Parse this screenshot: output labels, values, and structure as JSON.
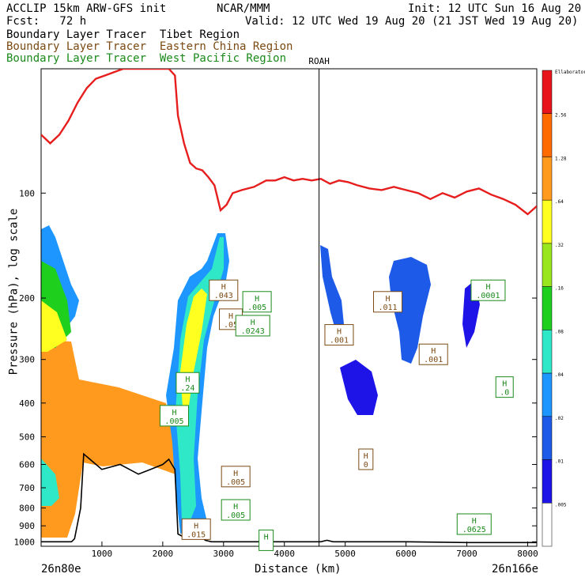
{
  "header": {
    "line1_left": "ACCLIP 15km ARW-GFS init",
    "line1_mid": "NCAR/MMM",
    "line1_right": "Init: 12 UTC Sun 16 Aug 20",
    "line2_left": "Fcst:   72 h",
    "line2_right": "Valid: 12 UTC Wed 19 Aug 20 (21 JST Wed 19 Aug 20)",
    "legend": [
      {
        "label": "Boundary Layer Tracer  Tibet Region",
        "color": "#000000"
      },
      {
        "label": "Boundary Layer Tracer  Eastern China Region",
        "color": "#7b4a12"
      },
      {
        "label": "Boundary Layer Tracer  West Pacific Region",
        "color": "#1a8a1a"
      }
    ]
  },
  "chart_data": {
    "type": "heatmap",
    "title": "ACCLIP 15km ARW-GFS init",
    "xlabel": "Distance (km)",
    "ylabel": "Pressure (hPa), log scale",
    "x_ticks": [
      1000,
      2000,
      3000,
      4000,
      5000,
      6000,
      7000,
      8000
    ],
    "x_range": [
      0,
      8150
    ],
    "y_scale": "log",
    "y_ticks": [
      100,
      200,
      300,
      400,
      500,
      600,
      700,
      800,
      900,
      1000
    ],
    "y_range": [
      1030,
      44
    ],
    "x_end_labels": {
      "left": "26n80e",
      "right": "26n166e"
    },
    "vertical_line": {
      "x": 4570,
      "label": "ROAH"
    },
    "colorbar": {
      "labels": [
        "Ellaborator",
        "2.56",
        "1.28",
        ".64",
        ".32",
        ".16",
        ".08",
        ".04",
        ".02",
        ".01",
        ".005"
      ],
      "colors": [
        "#e8141b",
        "#ff6a00",
        "#ff9a1e",
        "#ffff20",
        "#9ae61e",
        "#1ecf1e",
        "#2ee8c8",
        "#1e96ff",
        "#1e5ae8",
        "#1e14e8",
        "#ffffff"
      ]
    },
    "tropopause_line": {
      "color": "#e61e1e",
      "x": [
        0,
        150,
        300,
        450,
        600,
        750,
        900,
        1050,
        1200,
        1350,
        1500,
        1650,
        1800,
        1950,
        2100,
        2200,
        2250,
        2350,
        2450,
        2550,
        2650,
        2750,
        2850,
        2950,
        3050,
        3150,
        3300,
        3500,
        3700,
        3850,
        4000,
        4150,
        4300,
        4450,
        4600,
        4750,
        4900,
        5050,
        5200,
        5400,
        5600,
        5800,
        6000,
        6200,
        6400,
        6600,
        6800,
        7000,
        7200,
        7400,
        7600,
        7800,
        8000,
        8150
      ],
      "p": [
        68,
        72,
        68,
        62,
        55,
        50,
        47,
        46,
        45,
        44,
        44,
        44,
        44,
        44,
        44,
        46,
        60,
        72,
        82,
        85,
        86,
        90,
        95,
        112,
        108,
        100,
        98,
        96,
        92,
        92,
        90,
        92,
        91,
        92,
        91,
        94,
        92,
        93,
        95,
        97,
        98,
        96,
        98,
        100,
        104,
        100,
        103,
        99,
        97,
        101,
        104,
        108,
        115,
        109
      ]
    },
    "terrain": {
      "x": [
        0,
        200,
        400,
        500,
        550,
        650,
        700,
        1000,
        1300,
        1600,
        1800,
        2000,
        2100,
        2150,
        2200,
        2250,
        2400,
        2500,
        2600,
        2700,
        2800,
        2900,
        3000,
        3100,
        3300,
        3500,
        3800,
        4000,
        4300,
        4500,
        4600,
        4700,
        4800,
        5000,
        5500,
        6000,
        7000,
        8150
      ],
      "p": [
        1000,
        1000,
        1000,
        1000,
        980,
        800,
        560,
        620,
        600,
        640,
        620,
        600,
        580,
        600,
        620,
        950,
        980,
        940,
        960,
        990,
        1000,
        1000,
        1000,
        1000,
        1000,
        1000,
        1000,
        1000,
        1000,
        1000,
        1000,
        990,
        1000,
        1000,
        1000,
        1000,
        1005,
        1005
      ]
    },
    "highs": [
      {
        "x": 3000,
        "p": 190,
        "value": ".043",
        "color": "brown"
      },
      {
        "x": 3120,
        "p": 230,
        "value": ".05",
        "color": "brown"
      },
      {
        "x": 3200,
        "p": 650,
        "value": ".005",
        "color": "brown"
      },
      {
        "x": 2550,
        "p": 920,
        "value": ".015",
        "color": "brown"
      },
      {
        "x": 5700,
        "p": 205,
        "value": ".011",
        "color": "brown"
      },
      {
        "x": 5340,
        "p": 580,
        "value": "0",
        "color": "brown"
      },
      {
        "x": 6450,
        "p": 290,
        "value": ".001",
        "color": "brown"
      },
      {
        "x": 4900,
        "p": 255,
        "value": ".001",
        "color": "brown"
      },
      {
        "x": 2410,
        "p": 350,
        "value": ".24",
        "color": "green"
      },
      {
        "x": 2190,
        "p": 435,
        "value": ".005",
        "color": "green"
      },
      {
        "x": 3550,
        "p": 205,
        "value": ".005",
        "color": "green"
      },
      {
        "x": 3480,
        "p": 240,
        "value": ".0243",
        "color": "green"
      },
      {
        "x": 3200,
        "p": 810,
        "value": ".005",
        "color": "green"
      },
      {
        "x": 7350,
        "p": 190,
        "value": ".0001",
        "color": "green"
      },
      {
        "x": 7620,
        "p": 360,
        "value": ".0",
        "color": "green"
      },
      {
        "x": 7120,
        "p": 890,
        "value": ".0625",
        "color": "green"
      },
      {
        "x": 3700,
        "p": 990,
        "value": "",
        "color": "green"
      }
    ]
  }
}
